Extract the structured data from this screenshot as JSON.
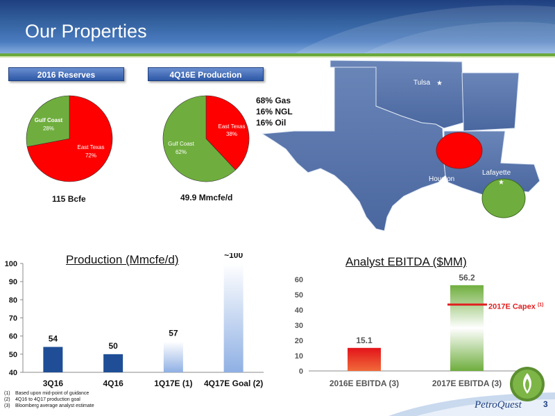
{
  "header": {
    "title": "Our Properties"
  },
  "reserves": {
    "label": "2016 Reserves",
    "caption": "115 Bcfe",
    "slices": [
      {
        "name": "East Texas",
        "pct": "72%",
        "value": 72,
        "color": "#ff0000"
      },
      {
        "name": "Gulf Coast",
        "pct": "28%",
        "value": 28,
        "color": "#6fae3e"
      }
    ]
  },
  "production_mix": {
    "label": "4Q16E Production",
    "caption": "49.9 Mmcfe/d",
    "slices": [
      {
        "name": "East Texas",
        "pct": "38%",
        "value": 38,
        "color": "#ff0000"
      },
      {
        "name": "Gulf Coast",
        "pct": "62%",
        "value": 62,
        "color": "#6fae3e"
      }
    ],
    "commodity": [
      "68% Gas",
      "16% NGL",
      "16% Oil"
    ]
  },
  "map": {
    "cities": [
      {
        "name": "Tulsa"
      },
      {
        "name": "Houston"
      },
      {
        "name": "Lafayette"
      }
    ],
    "markers": [
      {
        "name": "East Texas",
        "color": "#ff0000"
      },
      {
        "name": "Gulf Coast",
        "color": "#6fae3e"
      }
    ]
  },
  "chart_data": [
    {
      "type": "bar",
      "title": "Production (Mmcfe/d)",
      "categories": [
        "3Q16",
        "4Q16",
        "1Q17E (1)",
        "4Q17E Goal (2)"
      ],
      "values": [
        54,
        50,
        57,
        100
      ],
      "data_labels": [
        "54",
        "50",
        "57",
        "~100"
      ],
      "ylim": [
        40,
        100
      ],
      "yticks": [
        "40",
        "50",
        "60",
        "70",
        "80",
        "90",
        "100"
      ],
      "grid": false
    },
    {
      "type": "bar",
      "title": "Analyst EBITDA ($MM)",
      "categories": [
        "2016E EBITDA (3)",
        "2017E EBITDA (3)"
      ],
      "values": [
        15.1,
        56.2
      ],
      "data_labels": [
        "15.1",
        "56.2"
      ],
      "ylim": [
        0,
        60
      ],
      "yticks": [
        "0",
        "10",
        "20",
        "30",
        "40",
        "50",
        "60"
      ],
      "reference_line": {
        "label": "2017E Capex",
        "note": "(1)",
        "color": "#e02020"
      },
      "grid": false
    }
  ],
  "footnotes": [
    {
      "num": "(1)",
      "text": "Based upon mid-point of guidance"
    },
    {
      "num": "(2)",
      "text": "4Q16 to 4Q17 production goal"
    },
    {
      "num": "(3)",
      "text": "Bloomberg average analyst estimate"
    }
  ],
  "footer": {
    "brand": "PetroQuest",
    "slide_number": "3"
  }
}
